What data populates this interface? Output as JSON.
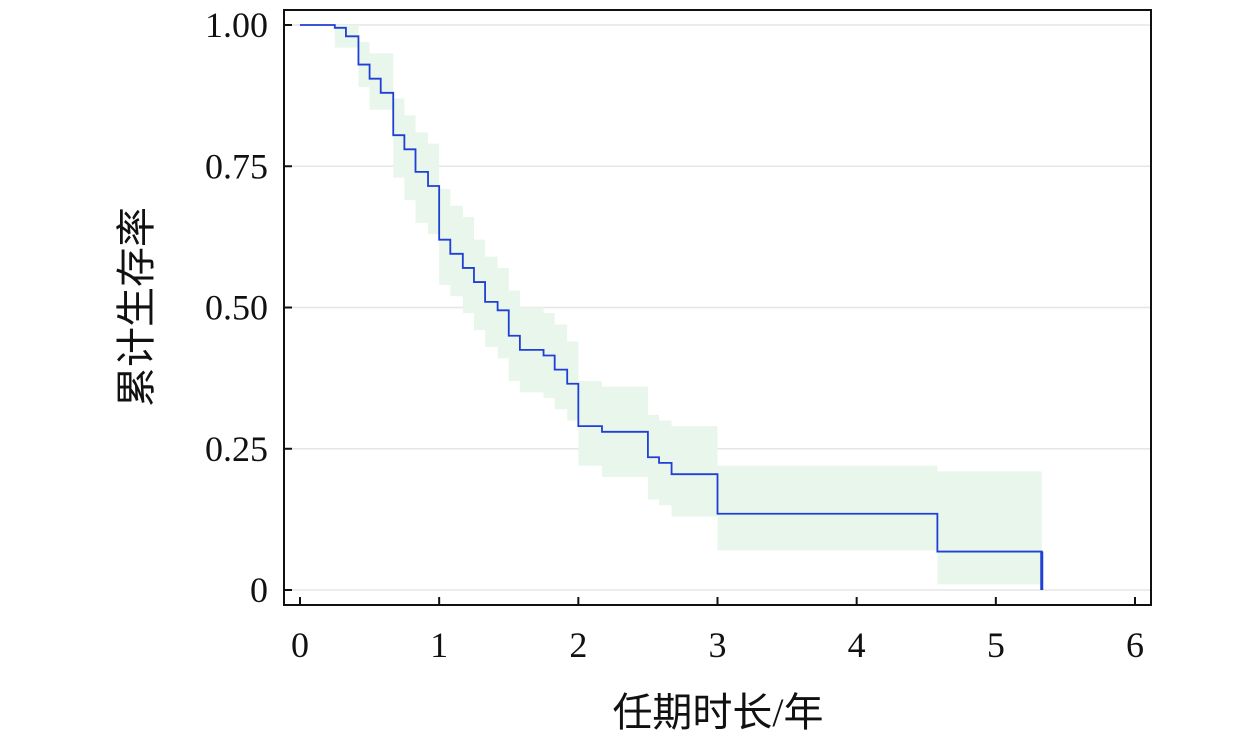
{
  "chart_data": {
    "type": "line",
    "subtype": "kaplan-meier-step",
    "title": "",
    "xlabel": "任期时长/年",
    "ylabel": "累计生存率",
    "xlim": [
      0,
      6
    ],
    "ylim": [
      0,
      1
    ],
    "x_ticks": [
      0,
      1,
      2,
      3,
      4,
      5,
      6
    ],
    "x_tick_labels": [
      "0",
      "1",
      "2",
      "3",
      "4",
      "5",
      "6"
    ],
    "y_ticks": [
      0,
      0.25,
      0.5,
      0.75,
      1.0
    ],
    "y_tick_labels": [
      "0",
      "0.25",
      "0.50",
      "0.75",
      "1.00"
    ],
    "grid": "horizontal",
    "series": [
      {
        "role": "survival",
        "color": "#1f3fd6",
        "steps": [
          {
            "x": 0.0,
            "y": 1.0
          },
          {
            "x": 0.25,
            "y": 0.995
          },
          {
            "x": 0.33,
            "y": 0.98
          },
          {
            "x": 0.42,
            "y": 0.93
          },
          {
            "x": 0.5,
            "y": 0.905
          },
          {
            "x": 0.58,
            "y": 0.88
          },
          {
            "x": 0.67,
            "y": 0.805
          },
          {
            "x": 0.75,
            "y": 0.78
          },
          {
            "x": 0.83,
            "y": 0.74
          },
          {
            "x": 0.92,
            "y": 0.715
          },
          {
            "x": 1.0,
            "y": 0.62
          },
          {
            "x": 1.08,
            "y": 0.595
          },
          {
            "x": 1.17,
            "y": 0.57
          },
          {
            "x": 1.25,
            "y": 0.545
          },
          {
            "x": 1.33,
            "y": 0.51
          },
          {
            "x": 1.42,
            "y": 0.495
          },
          {
            "x": 1.5,
            "y": 0.45
          },
          {
            "x": 1.58,
            "y": 0.425
          },
          {
            "x": 1.75,
            "y": 0.415
          },
          {
            "x": 1.83,
            "y": 0.39
          },
          {
            "x": 1.92,
            "y": 0.365
          },
          {
            "x": 2.0,
            "y": 0.29
          },
          {
            "x": 2.17,
            "y": 0.28
          },
          {
            "x": 2.5,
            "y": 0.235
          },
          {
            "x": 2.58,
            "y": 0.225
          },
          {
            "x": 2.67,
            "y": 0.205
          },
          {
            "x": 3.0,
            "y": 0.135
          },
          {
            "x": 4.58,
            "y": 0.068
          },
          {
            "x": 5.33,
            "y": 0.0
          }
        ],
        "end_x": 5.33
      },
      {
        "role": "confidence-band",
        "color": "#e8f6ec",
        "steps": [
          {
            "x": 0.25,
            "lo": 0.96,
            "hi": 1.0
          },
          {
            "x": 0.42,
            "lo": 0.89,
            "hi": 0.97
          },
          {
            "x": 0.5,
            "lo": 0.85,
            "hi": 0.95
          },
          {
            "x": 0.67,
            "lo": 0.73,
            "hi": 0.87
          },
          {
            "x": 0.75,
            "lo": 0.69,
            "hi": 0.84
          },
          {
            "x": 0.83,
            "lo": 0.65,
            "hi": 0.81
          },
          {
            "x": 0.92,
            "lo": 0.63,
            "hi": 0.79
          },
          {
            "x": 1.0,
            "lo": 0.54,
            "hi": 0.71
          },
          {
            "x": 1.08,
            "lo": 0.52,
            "hi": 0.68
          },
          {
            "x": 1.17,
            "lo": 0.49,
            "hi": 0.66
          },
          {
            "x": 1.25,
            "lo": 0.46,
            "hi": 0.62
          },
          {
            "x": 1.33,
            "lo": 0.43,
            "hi": 0.59
          },
          {
            "x": 1.42,
            "lo": 0.41,
            "hi": 0.57
          },
          {
            "x": 1.5,
            "lo": 0.37,
            "hi": 0.53
          },
          {
            "x": 1.58,
            "lo": 0.35,
            "hi": 0.5
          },
          {
            "x": 1.75,
            "lo": 0.34,
            "hi": 0.49
          },
          {
            "x": 1.83,
            "lo": 0.32,
            "hi": 0.47
          },
          {
            "x": 1.92,
            "lo": 0.3,
            "hi": 0.44
          },
          {
            "x": 2.0,
            "lo": 0.22,
            "hi": 0.37
          },
          {
            "x": 2.17,
            "lo": 0.2,
            "hi": 0.36
          },
          {
            "x": 2.5,
            "lo": 0.16,
            "hi": 0.31
          },
          {
            "x": 2.58,
            "lo": 0.15,
            "hi": 0.3
          },
          {
            "x": 2.67,
            "lo": 0.13,
            "hi": 0.29
          },
          {
            "x": 3.0,
            "lo": 0.07,
            "hi": 0.22
          },
          {
            "x": 4.58,
            "lo": 0.01,
            "hi": 0.21
          }
        ],
        "end_x": 5.33
      }
    ]
  }
}
